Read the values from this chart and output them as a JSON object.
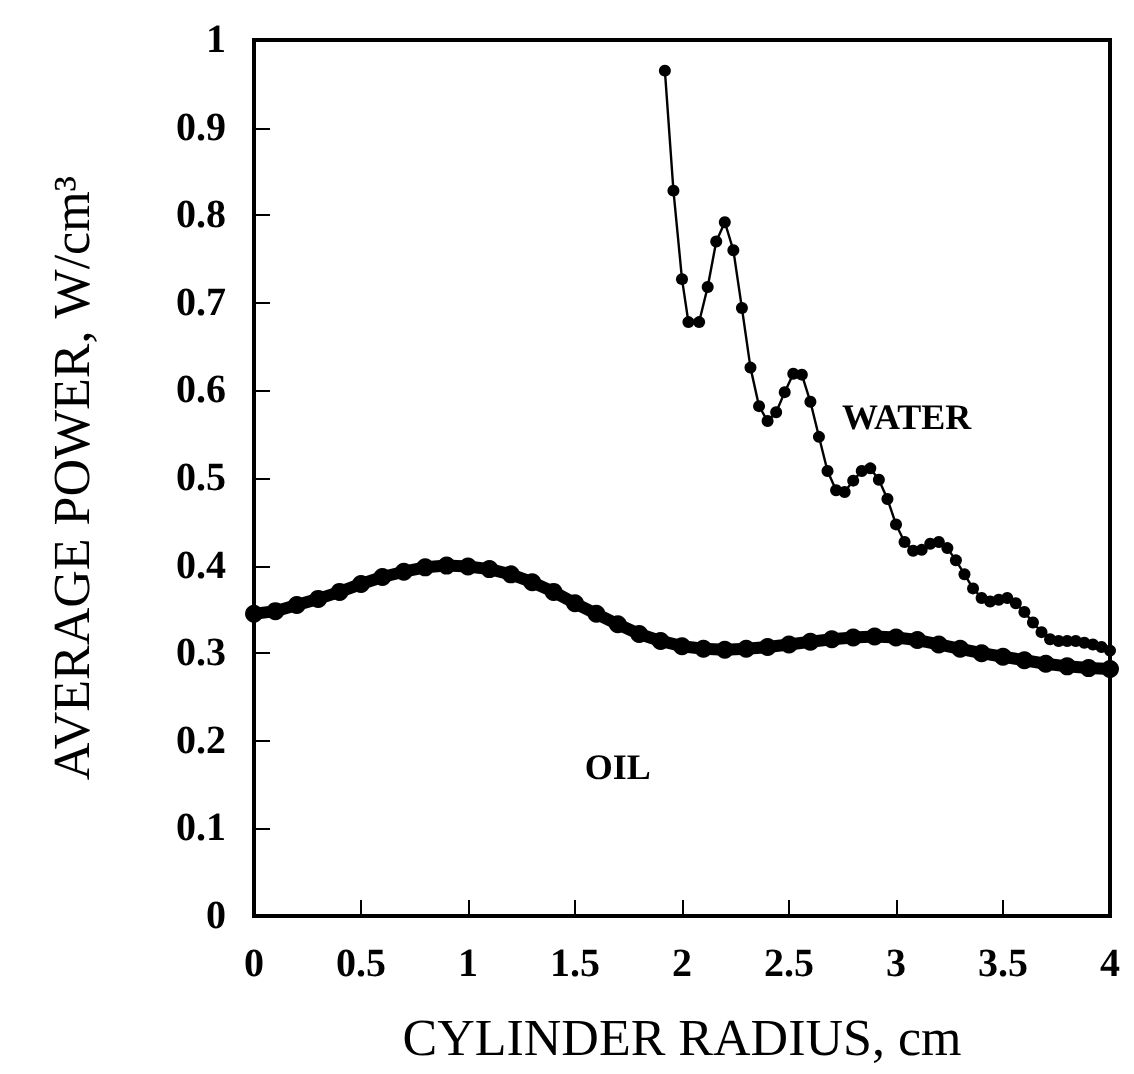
{
  "chart_data": {
    "type": "line",
    "xlabel": "CYLINDER RADIUS, cm",
    "ylabel": "AVERAGE POWER, W/cm³",
    "xlim": [
      0,
      4
    ],
    "xticks": [
      0,
      0.5,
      1,
      1.5,
      2,
      2.5,
      3,
      3.5,
      4
    ],
    "ylim": [
      0,
      1
    ],
    "yticks": [
      0,
      0.1,
      0.2,
      0.3,
      0.4,
      0.5,
      0.6,
      0.7,
      0.8,
      0.9,
      1
    ],
    "grid": false,
    "legend": false,
    "marker": "circle",
    "line_style": "solid",
    "series": [
      {
        "name": "WATER",
        "color": "#000000",
        "x": [
          1.92,
          1.96,
          2.0,
          2.03,
          2.08,
          2.12,
          2.16,
          2.2,
          2.24,
          2.28,
          2.32,
          2.36,
          2.4,
          2.44,
          2.48,
          2.52,
          2.56,
          2.6,
          2.64,
          2.68,
          2.72,
          2.76,
          2.8,
          2.84,
          2.88,
          2.92,
          2.96,
          3.0,
          3.04,
          3.08,
          3.12,
          3.16,
          3.2,
          3.24,
          3.28,
          3.32,
          3.36,
          3.4,
          3.44,
          3.48,
          3.52,
          3.56,
          3.6,
          3.64,
          3.68,
          3.72,
          3.76,
          3.8,
          3.84,
          3.88,
          3.92,
          3.96,
          4.0
        ],
        "values": [
          0.965,
          0.828,
          0.727,
          0.678,
          0.678,
          0.718,
          0.77,
          0.792,
          0.76,
          0.694,
          0.626,
          0.582,
          0.565,
          0.575,
          0.598,
          0.619,
          0.618,
          0.587,
          0.547,
          0.508,
          0.486,
          0.484,
          0.497,
          0.508,
          0.511,
          0.498,
          0.476,
          0.447,
          0.427,
          0.417,
          0.418,
          0.425,
          0.427,
          0.42,
          0.406,
          0.39,
          0.374,
          0.363,
          0.359,
          0.361,
          0.363,
          0.357,
          0.347,
          0.335,
          0.324,
          0.316,
          0.314,
          0.314,
          0.314,
          0.312,
          0.31,
          0.307,
          0.303
        ]
      },
      {
        "name": "OIL",
        "color": "#000000",
        "x": [
          0,
          0.1,
          0.2,
          0.3,
          0.4,
          0.5,
          0.6,
          0.7,
          0.8,
          0.9,
          1.0,
          1.1,
          1.2,
          1.3,
          1.4,
          1.5,
          1.6,
          1.7,
          1.8,
          1.9,
          2.0,
          2.1,
          2.2,
          2.3,
          2.4,
          2.5,
          2.6,
          2.7,
          2.8,
          2.9,
          3.0,
          3.1,
          3.2,
          3.3,
          3.4,
          3.5,
          3.6,
          3.7,
          3.8,
          3.9,
          4.0
        ],
        "values": [
          0.345,
          0.348,
          0.355,
          0.362,
          0.37,
          0.379,
          0.387,
          0.393,
          0.398,
          0.4,
          0.399,
          0.396,
          0.39,
          0.381,
          0.37,
          0.357,
          0.345,
          0.333,
          0.322,
          0.314,
          0.308,
          0.305,
          0.304,
          0.305,
          0.307,
          0.31,
          0.313,
          0.316,
          0.318,
          0.319,
          0.318,
          0.315,
          0.31,
          0.305,
          0.3,
          0.296,
          0.292,
          0.288,
          0.285,
          0.283,
          0.282
        ]
      }
    ]
  }
}
